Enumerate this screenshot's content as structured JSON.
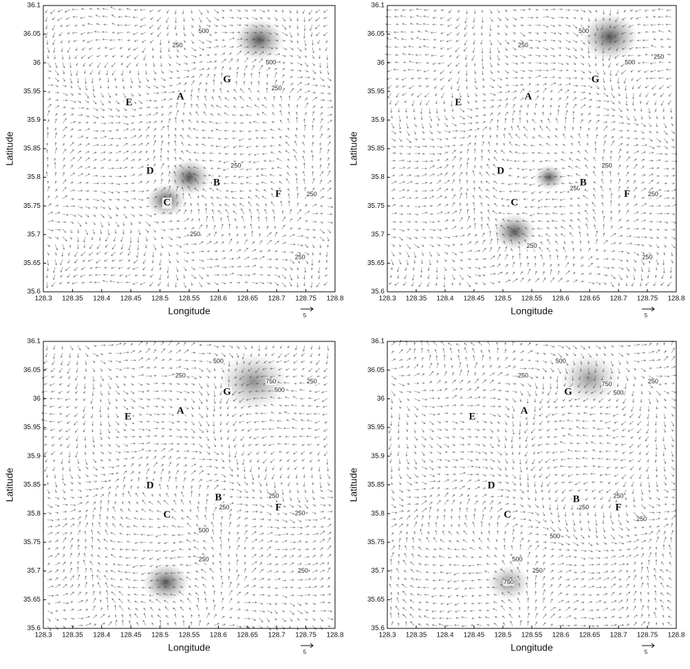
{
  "chart_data": [
    {
      "type": "quiver",
      "xlabel": "Longitude",
      "ylabel": "Latitude",
      "scale_label": "5",
      "xlim": [
        128.3,
        128.8
      ],
      "ylim": [
        35.6,
        36.1
      ],
      "xticks": [
        128.3,
        128.35,
        128.4,
        128.45,
        128.5,
        128.55,
        128.6,
        128.65,
        128.7,
        128.75,
        128.8
      ],
      "yticks": [
        35.6,
        35.65,
        35.7,
        35.75,
        35.8,
        35.85,
        35.9,
        35.95,
        36,
        36.05,
        36.1
      ],
      "annotations": [
        {
          "text": "E",
          "x": 128.447,
          "y": 35.93
        },
        {
          "text": "A",
          "x": 128.535,
          "y": 35.94
        },
        {
          "text": "G",
          "x": 128.615,
          "y": 35.97
        },
        {
          "text": "D",
          "x": 128.483,
          "y": 35.81
        },
        {
          "text": "B",
          "x": 128.597,
          "y": 35.79
        },
        {
          "text": "C",
          "x": 128.512,
          "y": 35.755
        },
        {
          "text": "F",
          "x": 128.703,
          "y": 35.77
        }
      ],
      "contour_labels": [
        {
          "text": "250",
          "x": 128.53,
          "y": 36.03
        },
        {
          "text": "500",
          "x": 128.575,
          "y": 36.055
        },
        {
          "text": "500",
          "x": 128.69,
          "y": 36.0
        },
        {
          "text": "250",
          "x": 128.7,
          "y": 35.955
        },
        {
          "text": "250",
          "x": 128.63,
          "y": 35.82
        },
        {
          "text": "250",
          "x": 128.76,
          "y": 35.77
        },
        {
          "text": "250",
          "x": 128.74,
          "y": 35.66
        },
        {
          "text": "250",
          "x": 128.56,
          "y": 35.7
        }
      ]
    },
    {
      "type": "quiver",
      "xlabel": "Longitude",
      "ylabel": "Latitude",
      "scale_label": "5",
      "xlim": [
        128.3,
        128.8
      ],
      "ylim": [
        35.6,
        36.1
      ],
      "xticks": [
        128.3,
        128.35,
        128.4,
        128.45,
        128.5,
        128.55,
        128.6,
        128.65,
        128.7,
        128.75,
        128.8
      ],
      "yticks": [
        35.6,
        35.65,
        35.7,
        35.75,
        35.8,
        35.85,
        35.9,
        35.95,
        36,
        36.05,
        36.1
      ],
      "annotations": [
        {
          "text": "E",
          "x": 128.423,
          "y": 35.93
        },
        {
          "text": "A",
          "x": 128.544,
          "y": 35.94
        },
        {
          "text": "G",
          "x": 128.66,
          "y": 35.97
        },
        {
          "text": "D",
          "x": 128.496,
          "y": 35.81
        },
        {
          "text": "B",
          "x": 128.639,
          "y": 35.79
        },
        {
          "text": "C",
          "x": 128.52,
          "y": 35.755
        },
        {
          "text": "F",
          "x": 128.715,
          "y": 35.77
        }
      ],
      "contour_labels": [
        {
          "text": "500",
          "x": 128.64,
          "y": 36.055
        },
        {
          "text": "250",
          "x": 128.535,
          "y": 36.03
        },
        {
          "text": "500",
          "x": 128.72,
          "y": 36.0
        },
        {
          "text": "250",
          "x": 128.77,
          "y": 36.01
        },
        {
          "text": "250",
          "x": 128.68,
          "y": 35.82
        },
        {
          "text": "250",
          "x": 128.625,
          "y": 35.78
        },
        {
          "text": "250",
          "x": 128.76,
          "y": 35.77
        },
        {
          "text": "250",
          "x": 128.75,
          "y": 35.66
        },
        {
          "text": "250",
          "x": 128.55,
          "y": 35.68
        }
      ]
    },
    {
      "type": "quiver",
      "xlabel": "Longitude",
      "ylabel": "Latitude",
      "scale_label": "5",
      "xlim": [
        128.3,
        128.8
      ],
      "ylim": [
        35.6,
        36.1
      ],
      "xticks": [
        128.3,
        128.35,
        128.4,
        128.45,
        128.5,
        128.55,
        128.6,
        128.65,
        128.7,
        128.75,
        128.8
      ],
      "yticks": [
        35.6,
        35.65,
        35.7,
        35.75,
        35.8,
        35.85,
        35.9,
        35.95,
        36,
        36.05,
        36.1
      ],
      "annotations": [
        {
          "text": "E",
          "x": 128.445,
          "y": 35.968
        },
        {
          "text": "A",
          "x": 128.535,
          "y": 35.978
        },
        {
          "text": "G",
          "x": 128.615,
          "y": 36.011
        },
        {
          "text": "D",
          "x": 128.483,
          "y": 35.848
        },
        {
          "text": "B",
          "x": 128.6,
          "y": 35.827
        },
        {
          "text": "C",
          "x": 128.512,
          "y": 35.797
        },
        {
          "text": "F",
          "x": 128.703,
          "y": 35.81
        }
      ],
      "contour_labels": [
        {
          "text": "500",
          "x": 128.6,
          "y": 36.065
        },
        {
          "text": "250",
          "x": 128.535,
          "y": 36.04
        },
        {
          "text": "750",
          "x": 128.69,
          "y": 36.03
        },
        {
          "text": "500",
          "x": 128.705,
          "y": 36.015
        },
        {
          "text": "250",
          "x": 128.76,
          "y": 36.03
        },
        {
          "text": "250",
          "x": 128.695,
          "y": 35.83
        },
        {
          "text": "250",
          "x": 128.61,
          "y": 35.81
        },
        {
          "text": "500",
          "x": 128.575,
          "y": 35.77
        },
        {
          "text": "250",
          "x": 128.74,
          "y": 35.8
        },
        {
          "text": "250",
          "x": 128.575,
          "y": 35.72
        },
        {
          "text": "250",
          "x": 128.745,
          "y": 35.7
        }
      ]
    },
    {
      "type": "quiver",
      "xlabel": "Longitude",
      "ylabel": "Latitude",
      "scale_label": "5",
      "xlim": [
        128.3,
        128.8
      ],
      "ylim": [
        35.6,
        36.1
      ],
      "xticks": [
        128.3,
        128.35,
        128.4,
        128.45,
        128.5,
        128.55,
        128.6,
        128.65,
        128.7,
        128.75,
        128.8
      ],
      "yticks": [
        35.6,
        35.65,
        35.7,
        35.75,
        35.8,
        35.85,
        35.9,
        35.95,
        36,
        36.05,
        36.1
      ],
      "annotations": [
        {
          "text": "E",
          "x": 128.447,
          "y": 35.968
        },
        {
          "text": "A",
          "x": 128.537,
          "y": 35.978
        },
        {
          "text": "G",
          "x": 128.613,
          "y": 36.011
        },
        {
          "text": "D",
          "x": 128.48,
          "y": 35.848
        },
        {
          "text": "B",
          "x": 128.627,
          "y": 35.824
        },
        {
          "text": "C",
          "x": 128.508,
          "y": 35.797
        },
        {
          "text": "F",
          "x": 128.7,
          "y": 35.81
        }
      ],
      "contour_labels": [
        {
          "text": "500",
          "x": 128.6,
          "y": 36.065
        },
        {
          "text": "250",
          "x": 128.535,
          "y": 36.04
        },
        {
          "text": "750",
          "x": 128.68,
          "y": 36.025
        },
        {
          "text": "500",
          "x": 128.7,
          "y": 36.01
        },
        {
          "text": "250",
          "x": 128.76,
          "y": 36.03
        },
        {
          "text": "250",
          "x": 128.7,
          "y": 35.83
        },
        {
          "text": "250",
          "x": 128.64,
          "y": 35.81
        },
        {
          "text": "500",
          "x": 128.59,
          "y": 35.76
        },
        {
          "text": "250",
          "x": 128.74,
          "y": 35.79
        },
        {
          "text": "500",
          "x": 128.525,
          "y": 35.72
        },
        {
          "text": "250",
          "x": 128.56,
          "y": 35.7
        },
        {
          "text": "750",
          "x": 128.51,
          "y": 35.68
        }
      ]
    }
  ]
}
